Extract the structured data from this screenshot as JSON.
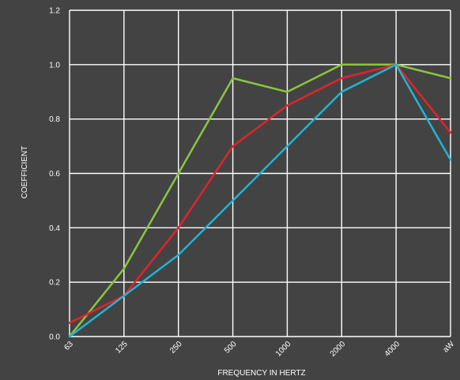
{
  "chart_data": {
    "type": "line",
    "title": "",
    "xlabel": "FREQUENCY IN HERTZ",
    "ylabel": "COEFFICIENT",
    "categories": [
      "63",
      "125",
      "250",
      "500",
      "1000",
      "2000",
      "4000",
      "aW"
    ],
    "ylim": [
      0,
      1.2
    ],
    "yticks": [
      "0.0",
      "0.2",
      "0.4",
      "0.6",
      "0.8",
      "1.0",
      "1.2"
    ],
    "grid": true,
    "legend": "none",
    "series": [
      {
        "color": "#8cc63e",
        "values": [
          0.0,
          0.25,
          0.6,
          0.95,
          0.9,
          1.0,
          1.0,
          0.95
        ]
      },
      {
        "color": "#e0242b",
        "values": [
          0.05,
          0.15,
          0.4,
          0.7,
          0.85,
          0.95,
          1.0,
          0.75
        ]
      },
      {
        "color": "#1fb5d6",
        "values": [
          0.0,
          0.15,
          0.3,
          0.5,
          0.7,
          0.9,
          1.0,
          0.65
        ]
      }
    ]
  }
}
